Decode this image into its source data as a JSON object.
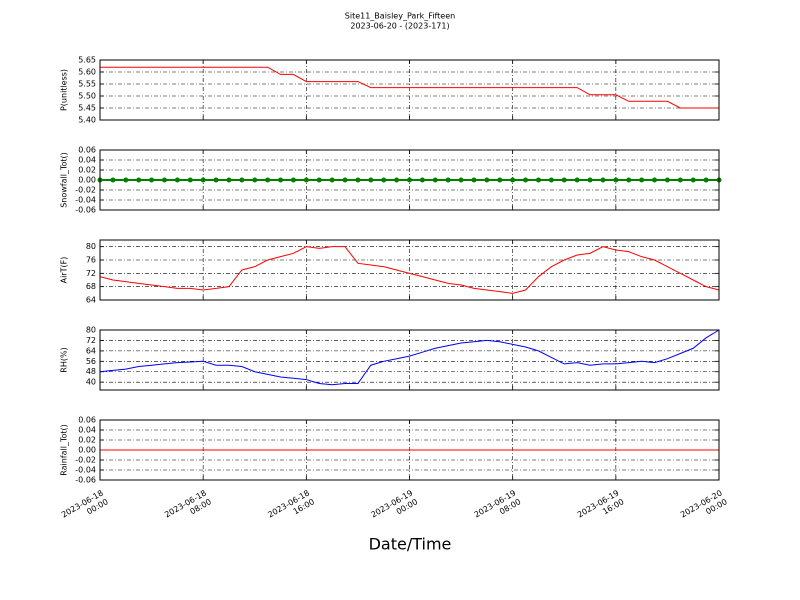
{
  "chart_data": {
    "type": "line",
    "title": "Site11_Baisley_Park_Fifteen",
    "subtitle": "2023-06-20 - (2023-171)",
    "xlabel": "Date/Time",
    "grid": true,
    "x": [
      "2023-06-18 00:00",
      "2023-06-18 01:00",
      "2023-06-18 02:00",
      "2023-06-18 03:00",
      "2023-06-18 04:00",
      "2023-06-18 05:00",
      "2023-06-18 06:00",
      "2023-06-18 07:00",
      "2023-06-18 08:00",
      "2023-06-18 09:00",
      "2023-06-18 10:00",
      "2023-06-18 11:00",
      "2023-06-18 12:00",
      "2023-06-18 13:00",
      "2023-06-18 14:00",
      "2023-06-18 15:00",
      "2023-06-18 16:00",
      "2023-06-18 17:00",
      "2023-06-18 18:00",
      "2023-06-18 19:00",
      "2023-06-18 20:00",
      "2023-06-18 21:00",
      "2023-06-18 22:00",
      "2023-06-18 23:00",
      "2023-06-19 00:00",
      "2023-06-19 01:00",
      "2023-06-19 02:00",
      "2023-06-19 03:00",
      "2023-06-19 04:00",
      "2023-06-19 05:00",
      "2023-06-19 06:00",
      "2023-06-19 07:00",
      "2023-06-19 08:00",
      "2023-06-19 09:00",
      "2023-06-19 10:00",
      "2023-06-19 11:00",
      "2023-06-19 12:00",
      "2023-06-19 13:00",
      "2023-06-19 14:00",
      "2023-06-19 15:00",
      "2023-06-19 16:00",
      "2023-06-19 17:00",
      "2023-06-19 18:00",
      "2023-06-19 19:00",
      "2023-06-19 20:00",
      "2023-06-19 21:00",
      "2023-06-19 22:00",
      "2023-06-19 23:00",
      "2023-06-20 00:00"
    ],
    "xlim": [
      "2023-06-18 00:00",
      "2023-06-20 00:00"
    ],
    "xticks": [
      {
        "value": "2023-06-18 00:00",
        "label": [
          "2023-06-18",
          "00:00"
        ]
      },
      {
        "value": "2023-06-18 08:00",
        "label": [
          "2023-06-18",
          "08:00"
        ]
      },
      {
        "value": "2023-06-18 16:00",
        "label": [
          "2023-06-18",
          "16:00"
        ]
      },
      {
        "value": "2023-06-19 00:00",
        "label": [
          "2023-06-19",
          "00:00"
        ]
      },
      {
        "value": "2023-06-19 08:00",
        "label": [
          "2023-06-19",
          "08:00"
        ]
      },
      {
        "value": "2023-06-19 16:00",
        "label": [
          "2023-06-19",
          "16:00"
        ]
      },
      {
        "value": "2023-06-20 00:00",
        "label": [
          "2023-06-20",
          "00:00"
        ]
      }
    ],
    "panels": [
      {
        "ylabel": "P(unitless)",
        "ylim": [
          5.4,
          5.65
        ],
        "yticks": [
          {
            "value": 5.4,
            "label": "5.40"
          },
          5.45,
          {
            "value": 5.5,
            "label": "5.50"
          },
          5.55,
          {
            "value": 5.6,
            "label": "5.60"
          },
          5.65
        ],
        "series": [
          {
            "color": "#ff0000",
            "values": [
              5.62,
              5.62,
              5.62,
              5.62,
              5.62,
              5.62,
              5.62,
              5.62,
              5.62,
              5.62,
              5.62,
              5.62,
              5.62,
              5.62,
              5.59,
              5.59,
              5.56,
              5.56,
              5.56,
              5.56,
              5.56,
              5.535,
              5.535,
              5.535,
              5.535,
              5.535,
              5.535,
              5.535,
              5.535,
              5.535,
              5.535,
              5.535,
              5.535,
              5.535,
              5.535,
              5.535,
              5.535,
              5.535,
              5.505,
              5.505,
              5.505,
              5.478,
              5.478,
              5.478,
              5.478,
              5.45,
              5.45,
              5.45,
              5.45
            ]
          }
        ]
      },
      {
        "ylabel": "Snowfall_Tot()",
        "ylim": [
          -0.06,
          0.06
        ],
        "yticks": [
          -0.06,
          -0.04,
          -0.02,
          {
            "value": 0,
            "label": "0.00"
          },
          0.02,
          0.04,
          0.06
        ],
        "series": [
          {
            "color": "#008000",
            "marker": true,
            "values": [
              0,
              0,
              0,
              0,
              0,
              0,
              0,
              0,
              0,
              0,
              0,
              0,
              0,
              0,
              0,
              0,
              0,
              0,
              0,
              0,
              0,
              0,
              0,
              0,
              0,
              0,
              0,
              0,
              0,
              0,
              0,
              0,
              0,
              0,
              0,
              0,
              0,
              0,
              0,
              0,
              0,
              0,
              0,
              0,
              0,
              0,
              0,
              0,
              0
            ]
          }
        ]
      },
      {
        "ylabel": "AirT(F)",
        "ylim": [
          64,
          82
        ],
        "yticks": [
          64,
          68,
          72,
          76,
          80
        ],
        "series": [
          {
            "color": "#ff0000",
            "values": [
              71,
              70,
              69.5,
              69,
              68.5,
              68,
              67.5,
              67.5,
              67,
              67.5,
              68,
              73,
              74,
              76,
              77,
              78,
              80,
              79.5,
              80,
              80,
              75,
              74.5,
              74,
              73,
              72,
              71,
              70,
              69,
              68.5,
              67.5,
              67,
              66.5,
              66,
              67,
              71,
              74,
              76,
              77.5,
              78,
              80,
              79,
              78.5,
              77,
              76,
              74,
              72,
              70,
              68,
              67
            ]
          }
        ]
      },
      {
        "ylabel": "RH(%)",
        "ylim": [
          34,
          80
        ],
        "yticks": [
          40,
          48,
          56,
          64,
          72,
          80
        ],
        "series": [
          {
            "color": "#0000ff",
            "values": [
              48,
              49,
              50,
              52,
              53,
              54,
              55,
              55.5,
              56,
              53,
              53,
              52,
              48,
              46,
              44,
              43,
              42,
              39,
              38,
              39,
              39,
              53,
              56,
              58,
              60,
              63,
              66,
              68,
              70,
              71,
              72,
              71,
              69,
              67,
              64,
              59,
              54,
              55,
              53,
              54,
              54,
              55,
              56,
              55,
              58,
              62,
              66,
              74,
              80
            ]
          }
        ]
      },
      {
        "ylabel": "Rainfall_Tot()",
        "ylim": [
          -0.06,
          0.06
        ],
        "yticks": [
          -0.06,
          -0.04,
          -0.02,
          {
            "value": 0,
            "label": "0.00"
          },
          0.02,
          0.04,
          0.06
        ],
        "series": [
          {
            "color": "#ff0000",
            "values": [
              0,
              0,
              0,
              0,
              0,
              0,
              0,
              0,
              0,
              0,
              0,
              0,
              0,
              0,
              0,
              0,
              0,
              0,
              0,
              0,
              0,
              0,
              0,
              0,
              0,
              0,
              0,
              0,
              0,
              0,
              0,
              0,
              0,
              0,
              0,
              0,
              0,
              0,
              0,
              0,
              0,
              0,
              0,
              0,
              0,
              0,
              0,
              0,
              0
            ]
          }
        ]
      }
    ]
  }
}
